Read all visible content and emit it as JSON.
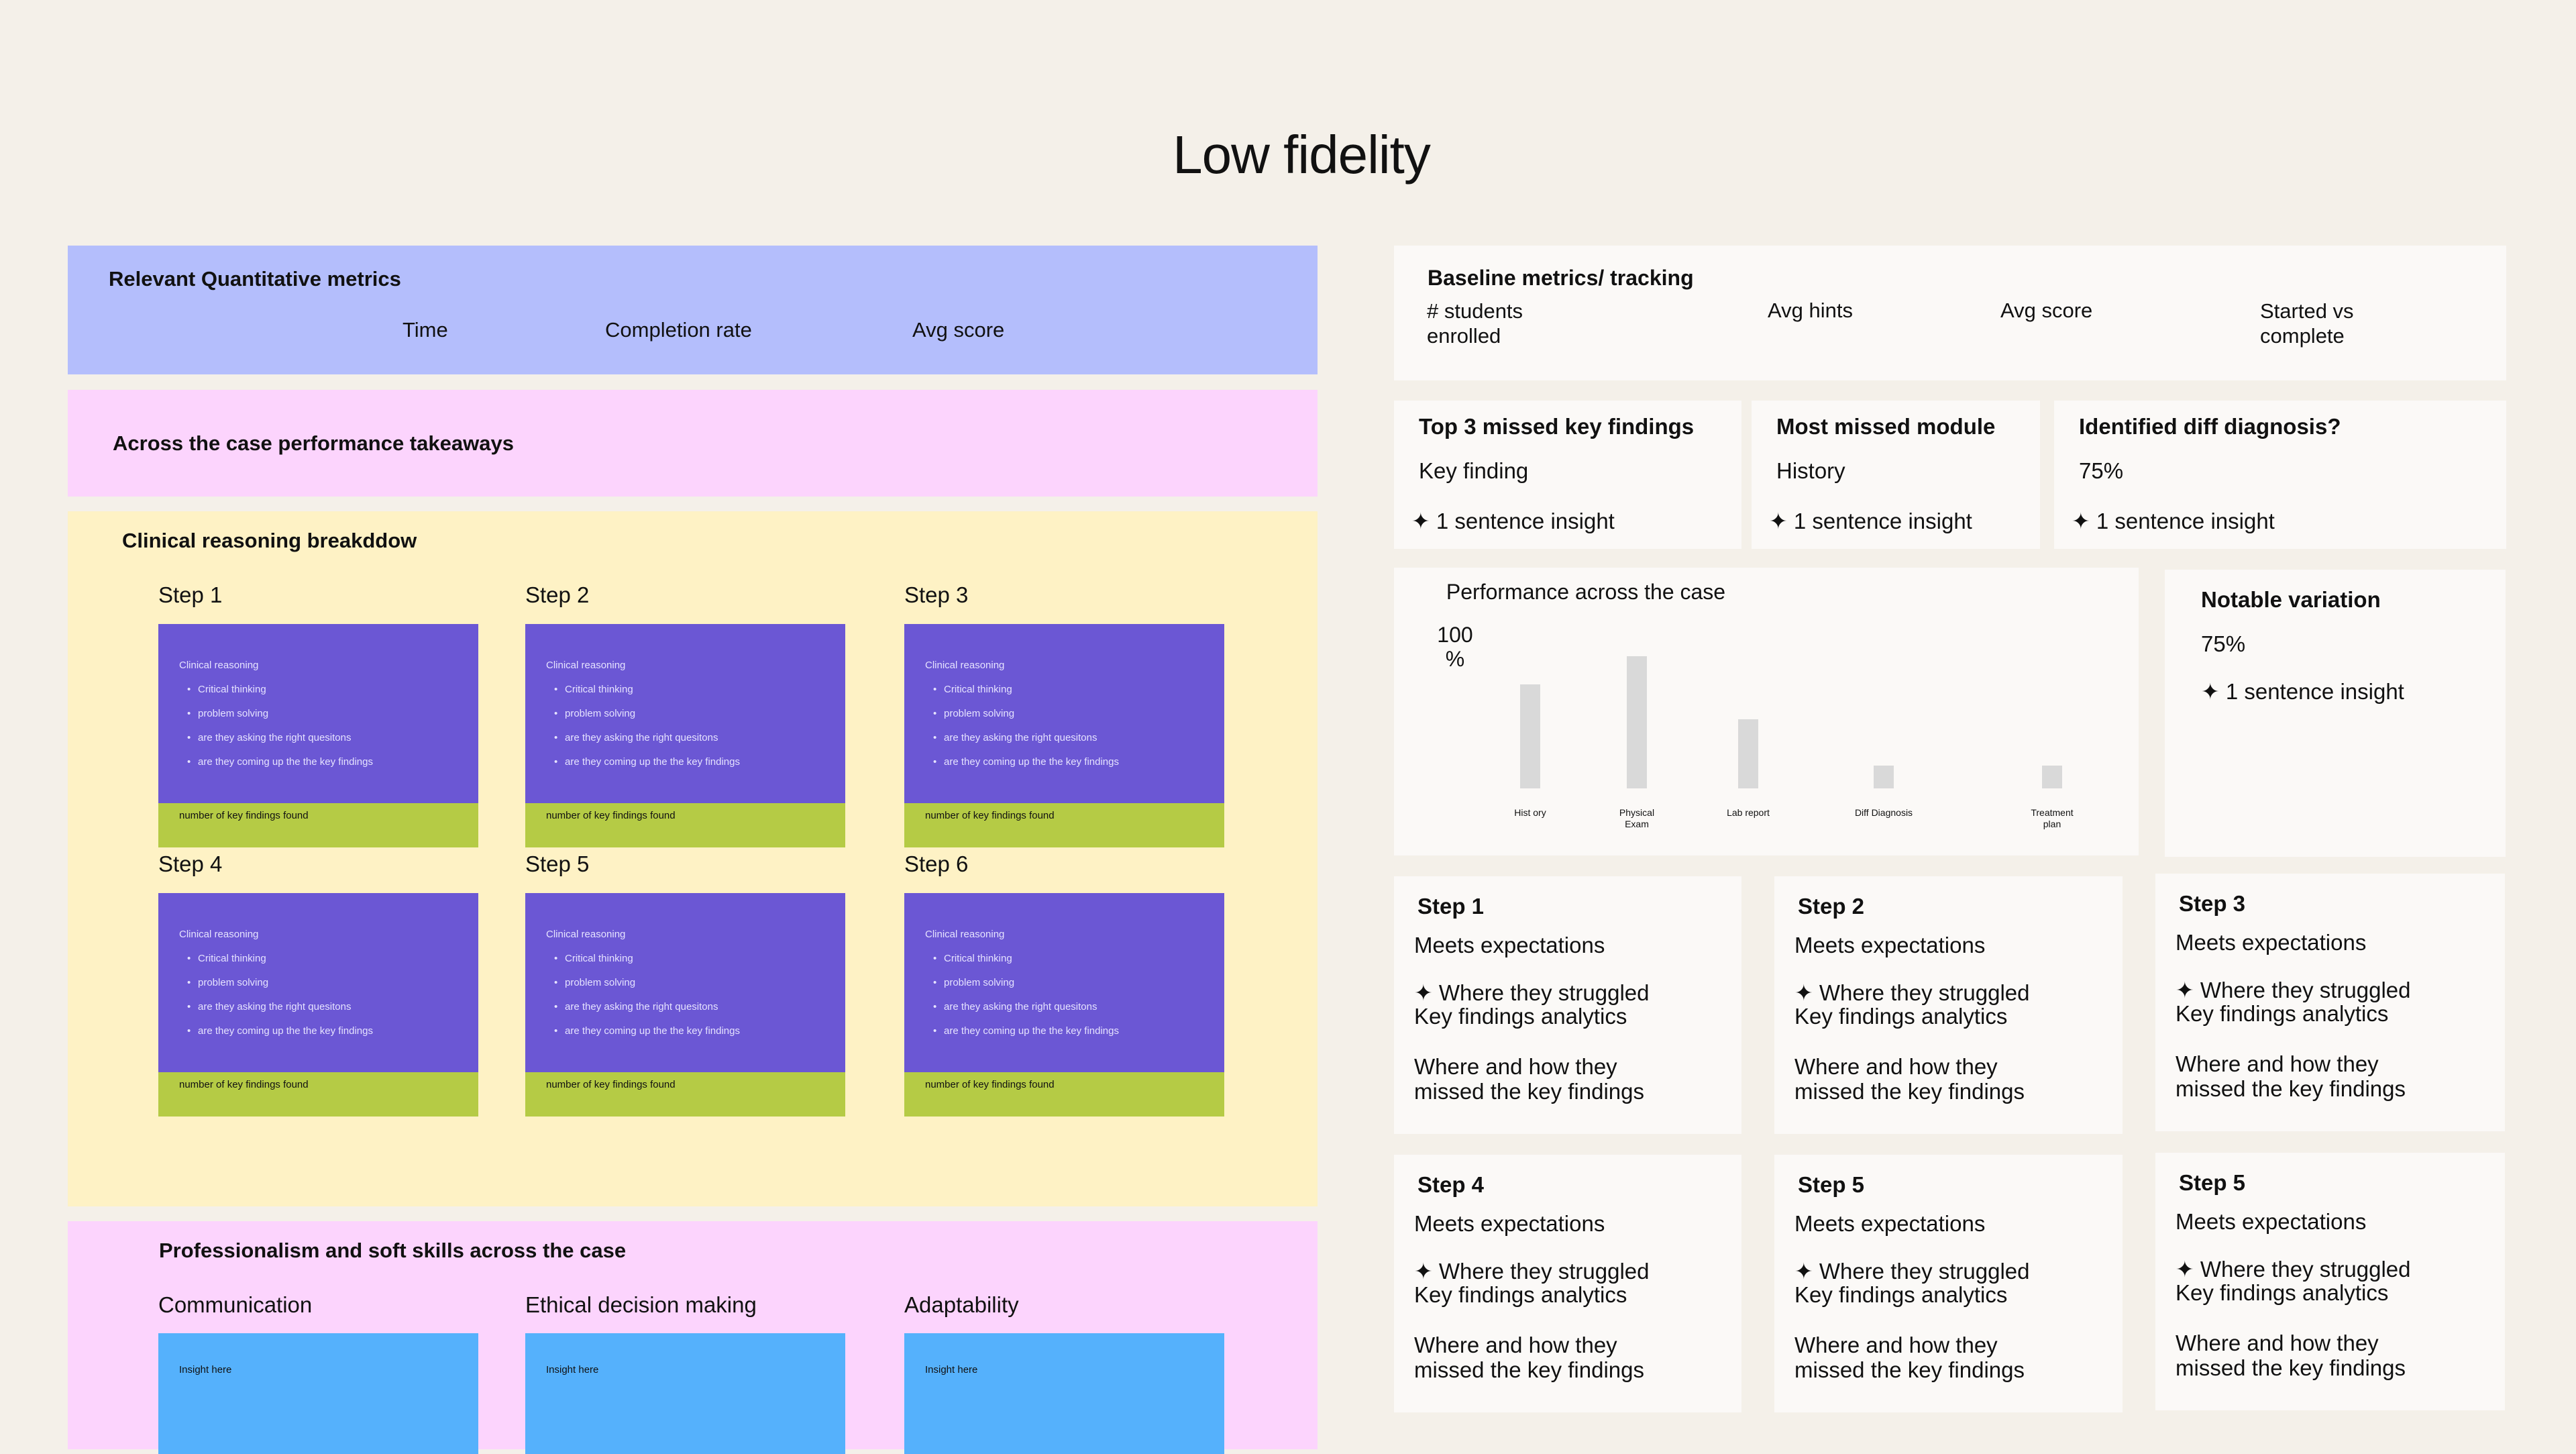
{
  "page_title": "Low fidelity",
  "left": {
    "quant_metrics": {
      "title": "Relevant Quantitative metrics",
      "items": [
        "Time",
        "Completion rate",
        "Avg score"
      ]
    },
    "takeaways": {
      "title": "Across the case performance takeaways"
    },
    "clinical": {
      "title": "Clinical reasoning breakddow",
      "steps": [
        {
          "label": "Step 1"
        },
        {
          "label": "Step 2"
        },
        {
          "label": "Step 3"
        },
        {
          "label": "Step 4"
        },
        {
          "label": "Step 5"
        },
        {
          "label": "Step 6"
        }
      ],
      "card": {
        "title": "Clinical reasoning",
        "bullets": [
          "Critical thinking",
          "problem solving",
          "are they asking the right quesitons",
          "are they coming up the the key findings"
        ],
        "footer": "number of key findings found"
      }
    },
    "soft_skills": {
      "title": "Professionalism and soft skills across the case",
      "items": [
        {
          "label": "Communication",
          "insight": "Insight here"
        },
        {
          "label": "Ethical decision making",
          "insight": "Insight here"
        },
        {
          "label": "Adaptability",
          "insight": "Insight here"
        }
      ]
    }
  },
  "right": {
    "baseline": {
      "title": "Baseline metrics/ tracking",
      "items": [
        "# students enrolled",
        "Avg hints",
        "Avg score",
        "Started vs complete"
      ]
    },
    "summary_cards": [
      {
        "title": "Top 3 missed key findings",
        "value": "Key finding",
        "insight": "1 sentence insight"
      },
      {
        "title": "Most missed module",
        "value": "History",
        "insight": "1 sentence insight"
      },
      {
        "title": "Identified  diff diagnosis?",
        "value": "75%",
        "insight": "1 sentence insight"
      }
    ],
    "performance": {
      "title": "Performance across the case",
      "y_label": "100 %"
    },
    "notable": {
      "title": "Notable variation",
      "value": "75%",
      "insight": "1 sentence insight"
    },
    "step_cards": [
      {
        "title": "Step 1",
        "status": "Meets expectations",
        "struggle": "Where they struggled",
        "analytics": "Key findings analytics",
        "missed": "Where and how they missed the key findings"
      },
      {
        "title": "Step 2",
        "status": "Meets expectations",
        "struggle": "Where they struggled",
        "analytics": "Key findings analytics",
        "missed": "Where and how they missed the key findings"
      },
      {
        "title": "Step 3",
        "status": "Meets expectations",
        "struggle": "Where they struggled",
        "analytics": "Key findings analytics",
        "missed": "Where and how they missed the key findings"
      },
      {
        "title": "Step 4",
        "status": "Meets expectations",
        "struggle": "Where they struggled",
        "analytics": "Key findings analytics",
        "missed": "Where and how they missed the key findings"
      },
      {
        "title": "Step 5",
        "status": "Meets expectations",
        "struggle": "Where they struggled",
        "analytics": "Key findings analytics",
        "missed": "Where and how they missed the key findings"
      },
      {
        "title": "Step 5",
        "status": "Meets expectations",
        "struggle": "Where they struggled",
        "analytics": "Key findings analytics",
        "missed": "Where and how they missed the key findings"
      }
    ]
  },
  "chart_data": {
    "type": "bar",
    "title": "Performance across the case",
    "ylabel": "100 %",
    "categories": [
      "Hist ory",
      "Physical Exam",
      "Lab report",
      "Diff Diagnosis",
      "Treatment plan"
    ],
    "values": [
      63,
      80,
      42,
      14,
      14
    ],
    "ylim": [
      0,
      100
    ]
  }
}
